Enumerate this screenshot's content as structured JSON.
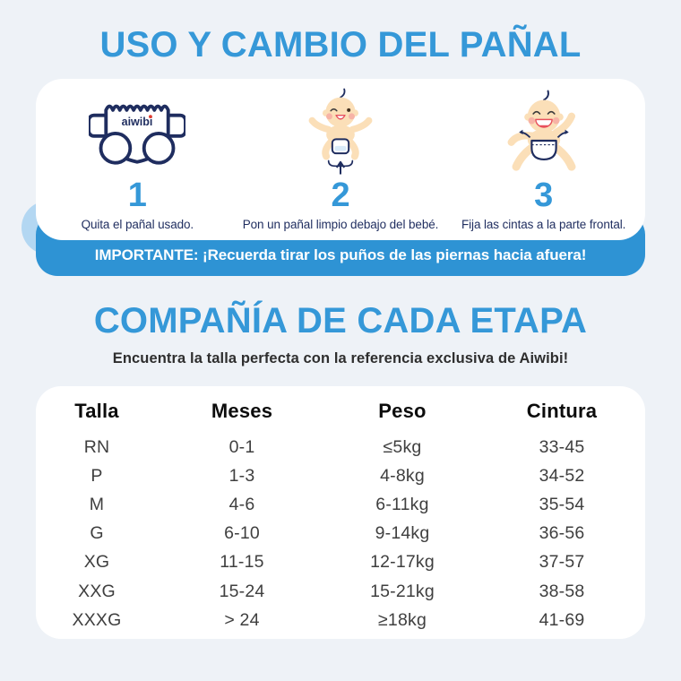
{
  "colors": {
    "accent": "#3598d8",
    "navy": "#1f2d5f",
    "banner_bg": "#2e93d4",
    "page_bg": "#eef2f7",
    "deco_light_blue": "#b3d7f2"
  },
  "section_usage": {
    "title": "USO Y CAMBIO DEL PAÑAL",
    "steps": [
      {
        "number": "1",
        "caption": "Quita el pañal usado.",
        "icon": "diaper-icon",
        "icon_label": "aiwibi"
      },
      {
        "number": "2",
        "caption": "Pon un pañal limpio debajo del bebé.",
        "icon": "baby-place-diaper-icon"
      },
      {
        "number": "3",
        "caption": "Fija las cintas a la parte frontal.",
        "icon": "baby-fasten-tapes-icon"
      }
    ],
    "banner": "IMPORTANTE: ¡Recuerda tirar los puños de las piernas hacia afuera!"
  },
  "section_sizes": {
    "title": "COMPAÑÍA DE CADA ETAPA",
    "subtitle": "Encuentra la talla perfecta con la referencia exclusiva de Aiwibi!",
    "table": {
      "headers": [
        "Talla",
        "Meses",
        "Peso",
        "Cintura"
      ],
      "rows": [
        [
          "RN",
          "0-1",
          "≤5kg",
          "33-45"
        ],
        [
          "P",
          "1-3",
          "4-8kg",
          "34-52"
        ],
        [
          "M",
          "4-6",
          "6-11kg",
          "35-54"
        ],
        [
          "G",
          "6-10",
          "9-14kg",
          "36-56"
        ],
        [
          "XG",
          "11-15",
          "12-17kg",
          "37-57"
        ],
        [
          "XXG",
          "15-24",
          "15-21kg",
          "38-58"
        ],
        [
          "XXXG",
          "> 24",
          "≥18kg",
          "41-69"
        ]
      ]
    }
  }
}
